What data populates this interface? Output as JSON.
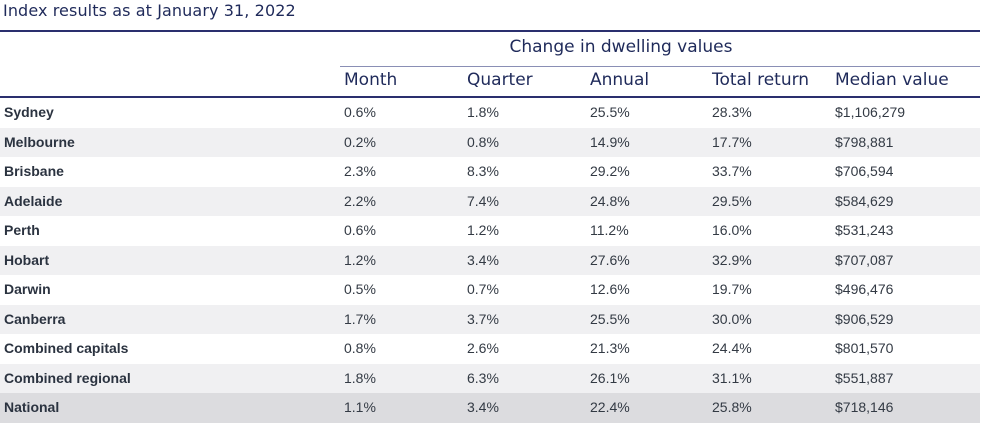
{
  "title": "Index results as at January 31, 2022",
  "group_header": "Change in dwelling values",
  "columns": [
    "Month",
    "Quarter",
    "Annual",
    "Total return",
    "Median value"
  ],
  "rows": [
    {
      "region": "Sydney",
      "month": "0.6%",
      "quarter": "1.8%",
      "annual": "25.5%",
      "total_return": "28.3%",
      "median_value": "$1,106,279"
    },
    {
      "region": "Melbourne",
      "month": "0.2%",
      "quarter": "0.8%",
      "annual": "14.9%",
      "total_return": "17.7%",
      "median_value": "$798,881"
    },
    {
      "region": "Brisbane",
      "month": "2.3%",
      "quarter": "8.3%",
      "annual": "29.2%",
      "total_return": "33.7%",
      "median_value": "$706,594"
    },
    {
      "region": "Adelaide",
      "month": "2.2%",
      "quarter": "7.4%",
      "annual": "24.8%",
      "total_return": "29.5%",
      "median_value": "$584,629"
    },
    {
      "region": "Perth",
      "month": "0.6%",
      "quarter": "1.2%",
      "annual": "11.2%",
      "total_return": "16.0%",
      "median_value": "$531,243"
    },
    {
      "region": "Hobart",
      "month": "1.2%",
      "quarter": "3.4%",
      "annual": "27.6%",
      "total_return": "32.9%",
      "median_value": "$707,087"
    },
    {
      "region": "Darwin",
      "month": "0.5%",
      "quarter": "0.7%",
      "annual": "12.6%",
      "total_return": "19.7%",
      "median_value": "$496,476"
    },
    {
      "region": "Canberra",
      "month": "1.7%",
      "quarter": "3.7%",
      "annual": "25.5%",
      "total_return": "30.0%",
      "median_value": "$906,529"
    },
    {
      "region": "Combined capitals",
      "month": "0.8%",
      "quarter": "2.6%",
      "annual": "21.3%",
      "total_return": "24.4%",
      "median_value": "$801,570"
    },
    {
      "region": "Combined regional",
      "month": "1.8%",
      "quarter": "6.3%",
      "annual": "26.1%",
      "total_return": "31.1%",
      "median_value": "$551,887"
    },
    {
      "region": "National",
      "month": "1.1%",
      "quarter": "3.4%",
      "annual": "22.4%",
      "total_return": "25.8%",
      "median_value": "$718,146"
    }
  ],
  "colors": {
    "header_text": "#1f2a5a",
    "rule": "#2a2f6e",
    "shade": "#f0f0f2",
    "national_shade": "#dcdcdf"
  }
}
